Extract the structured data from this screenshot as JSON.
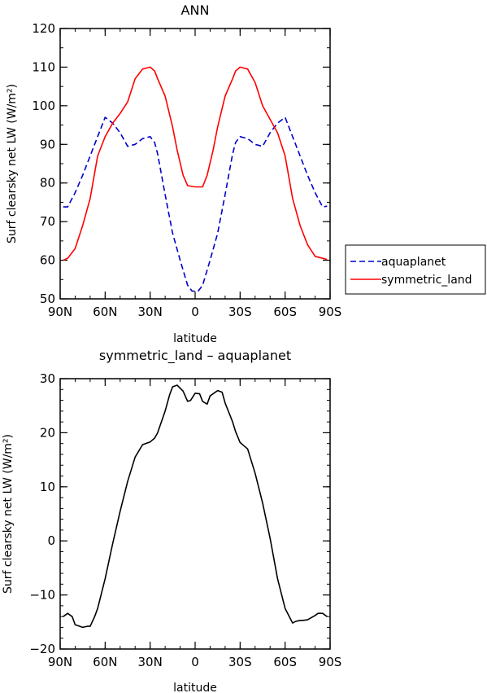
{
  "chart_data": [
    {
      "type": "line",
      "title": "ANN",
      "xlabel": "latitude",
      "ylabel": "Surf clearsky net LW (W/m²)",
      "xlim": [
        -90,
        90
      ],
      "ylim": [
        50,
        120
      ],
      "x_ticks": [
        -90,
        -60,
        -30,
        0,
        30,
        60,
        90
      ],
      "x_tick_labels": [
        "90N",
        "60N",
        "30N",
        "0",
        "30S",
        "60S",
        "90S"
      ],
      "y_ticks": [
        50,
        60,
        70,
        80,
        90,
        100,
        110,
        120
      ],
      "y_tick_labels": [
        "50",
        "60",
        "70",
        "80",
        "90",
        "100",
        "110",
        "120"
      ],
      "legend_position": "right",
      "series": [
        {
          "name": "aquaplanet",
          "color": "#0000cc",
          "dash": "dashed",
          "x": [
            -88,
            -85,
            -80,
            -75,
            -70,
            -65,
            -60,
            -55,
            -50,
            -45,
            -40,
            -35,
            -30,
            -27,
            -25,
            -20,
            -15,
            -10,
            -5,
            -2,
            0,
            2,
            5,
            10,
            15,
            20,
            25,
            27,
            30,
            35,
            40,
            45,
            50,
            55,
            60,
            65,
            70,
            75,
            80,
            85,
            88
          ],
          "y": [
            73.8,
            73.8,
            77.5,
            82,
            87,
            92,
            97,
            95.5,
            93,
            89.5,
            90,
            91.5,
            92,
            90.5,
            87.5,
            77,
            67,
            60,
            53.5,
            52,
            52,
            52,
            53.5,
            60,
            67,
            77,
            87.5,
            90.5,
            92,
            91.5,
            90,
            89.5,
            93,
            95.5,
            97,
            92,
            87,
            82,
            77.5,
            73.8,
            74
          ]
        },
        {
          "name": "symmetric_land",
          "color": "#ff0000",
          "dash": "solid",
          "x": [
            -88,
            -85,
            -80,
            -75,
            -70,
            -65,
            -60,
            -55,
            -50,
            -45,
            -40,
            -35,
            -30,
            -27,
            -25,
            -20,
            -15,
            -12,
            -8,
            -5,
            0,
            5,
            8,
            12,
            15,
            20,
            25,
            27,
            30,
            35,
            40,
            45,
            50,
            55,
            60,
            65,
            70,
            75,
            80,
            85,
            88
          ],
          "y": [
            60,
            60.5,
            63,
            69,
            76,
            87,
            92,
            95.5,
            98,
            101,
            107,
            109.5,
            110,
            109,
            107,
            102.5,
            94.5,
            88.5,
            82,
            79.3,
            79,
            79,
            82,
            88.5,
            94.5,
            102.5,
            107,
            109,
            110,
            109.5,
            106,
            100,
            96.5,
            93,
            87,
            76,
            69,
            64,
            61,
            60.5,
            60.2
          ]
        }
      ]
    },
    {
      "type": "line",
      "title": "symmetric_land – aquaplanet",
      "xlabel": "latitude",
      "ylabel": "Surf clearsky net LW (W/m²)",
      "xlim": [
        -90,
        90
      ],
      "ylim": [
        -20,
        30
      ],
      "x_ticks": [
        -90,
        -60,
        -30,
        0,
        30,
        60,
        90
      ],
      "x_tick_labels": [
        "90N",
        "60N",
        "30N",
        "0",
        "30S",
        "60S",
        "90S"
      ],
      "y_ticks": [
        -20,
        -10,
        0,
        10,
        20,
        30
      ],
      "y_tick_labels": [
        "−20",
        "−10",
        "0",
        "10",
        "20",
        "30"
      ],
      "series": [
        {
          "color": "#000000",
          "dash": "solid",
          "x": [
            -88,
            -85,
            -82,
            -80,
            -75,
            -72,
            -70,
            -67,
            -65,
            -60,
            -55,
            -50,
            -45,
            -40,
            -35,
            -30,
            -27,
            -25,
            -20,
            -17,
            -15,
            -12,
            -8,
            -5,
            -3,
            0,
            3,
            5,
            8,
            10,
            15,
            18,
            20,
            25,
            27,
            30,
            35,
            40,
            45,
            50,
            55,
            60,
            65,
            67,
            70,
            72,
            75,
            80,
            82,
            85,
            88
          ],
          "y": [
            -14,
            -13.4,
            -14,
            -15.5,
            -16,
            -15.8,
            -15.8,
            -14,
            -12.5,
            -7,
            -0.5,
            5.5,
            11,
            15.5,
            17.8,
            18.3,
            19,
            20,
            24,
            27,
            28.5,
            28.8,
            27.7,
            25.8,
            26,
            27.3,
            27.2,
            25.8,
            25.3,
            26.8,
            27.8,
            27.5,
            25.5,
            22,
            20.2,
            18.2,
            17,
            12.5,
            7,
            0.5,
            -7,
            -12.5,
            -15.2,
            -14.9,
            -14.7,
            -14.7,
            -14.6,
            -13.8,
            -13.4,
            -13.4,
            -14
          ]
        }
      ]
    }
  ]
}
